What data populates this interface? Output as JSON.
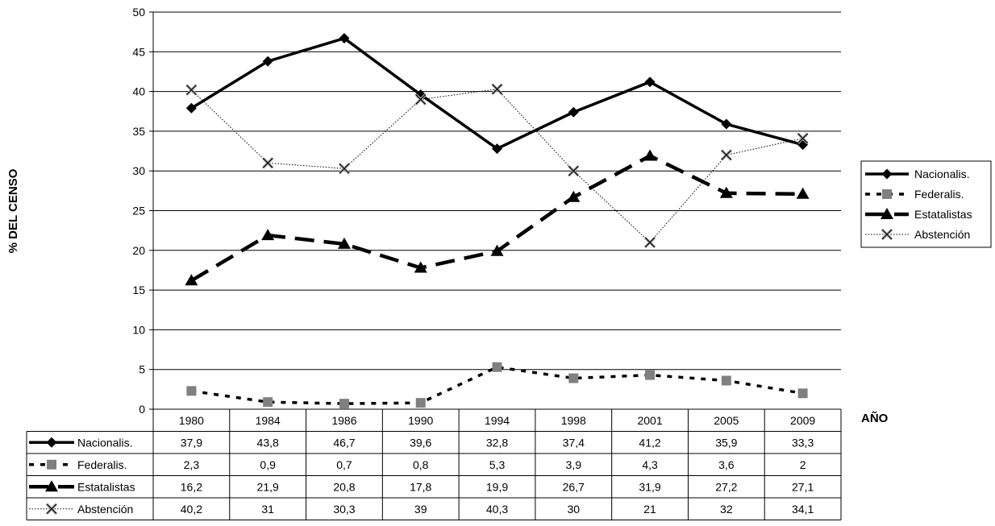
{
  "chart_data": {
    "type": "line",
    "ylabel": "% DEL CENSO",
    "xlabel": "AÑO",
    "ylim": [
      0,
      50
    ],
    "yticks": [
      "0",
      "5",
      "10",
      "15",
      "20",
      "25",
      "30",
      "35",
      "40",
      "45",
      "50"
    ],
    "categories": [
      "1980",
      "1984",
      "1986",
      "1990",
      "1994",
      "1998",
      "2001",
      "2005",
      "2009"
    ],
    "grid": "horizontal",
    "legend_position": "right",
    "series": [
      {
        "name": "Nacionalis.",
        "style": "solid-thick",
        "marker": "diamond",
        "color": "#000000",
        "values": [
          37.9,
          43.8,
          46.7,
          39.6,
          32.8,
          37.4,
          41.2,
          35.9,
          33.3
        ],
        "labels": [
          "37,9",
          "43,8",
          "46,7",
          "39,6",
          "32,8",
          "37,4",
          "41,2",
          "35,9",
          "33,3"
        ]
      },
      {
        "name": "Federalis.",
        "style": "dashed",
        "marker": "square",
        "color": "#000000",
        "marker_color": "#808080",
        "values": [
          2.3,
          0.9,
          0.7,
          0.8,
          5.3,
          3.9,
          4.3,
          3.6,
          2
        ],
        "labels": [
          "2,3",
          "0,9",
          "0,7",
          "0,8",
          "5,3",
          "3,9",
          "4,3",
          "3,6",
          "2"
        ]
      },
      {
        "name": "Estatalistas",
        "style": "long-dash",
        "marker": "triangle",
        "color": "#000000",
        "values": [
          16.2,
          21.9,
          20.8,
          17.8,
          19.9,
          26.7,
          31.9,
          27.2,
          27.1
        ],
        "labels": [
          "16,2",
          "21,9",
          "20,8",
          "17,8",
          "19,9",
          "26,7",
          "31,9",
          "27,2",
          "27,1"
        ]
      },
      {
        "name": "Abstención",
        "style": "dotted",
        "marker": "x",
        "color": "#000000",
        "marker_color": "#b0b0b0",
        "values": [
          40.2,
          31,
          30.3,
          39,
          40.3,
          30,
          21,
          32,
          34.1
        ],
        "labels": [
          "40,2",
          "31",
          "30,3",
          "39",
          "40,3",
          "30",
          "21",
          "32",
          "34,1"
        ]
      }
    ]
  }
}
